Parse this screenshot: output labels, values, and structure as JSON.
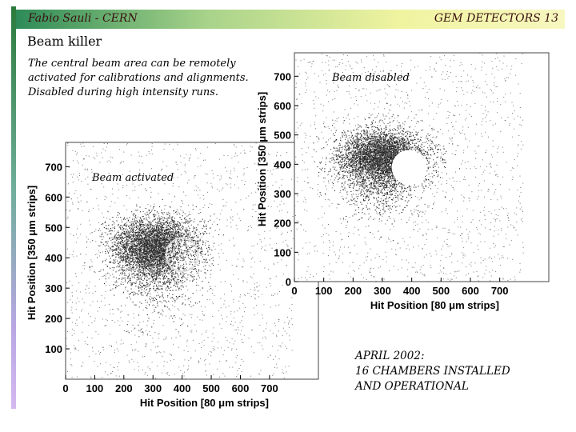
{
  "header": {
    "author": "Fabio Sauli - CERN",
    "slide_label": "GEM DETECTORS 13"
  },
  "slide": {
    "title": "Beam killer",
    "description_lines": [
      "The central beam area can be remotely",
      "activated for calibrations and alignments.",
      "Disabled during high intensity runs."
    ],
    "note_lines": [
      "APRIL 2002:",
      "16 CHAMBERS INSTALLED",
      "AND OPERATIONAL"
    ]
  },
  "chart_data": [
    {
      "type": "scatter",
      "annotation": "Beam activated",
      "xlabel": "Hit Position [80 μm strips]",
      "ylabel": "Hit Position [350 μm strips]",
      "xlim": [
        0,
        780
      ],
      "ylim": [
        0,
        780
      ],
      "xticks": [
        0,
        100,
        200,
        300,
        400,
        500,
        600,
        700
      ],
      "yticks": [
        100,
        200,
        300,
        400,
        500,
        600,
        700
      ],
      "cluster": {
        "x_range": [
          210,
          470
        ],
        "y_range": [
          340,
          510
        ],
        "center": [
          300,
          440
        ]
      },
      "hole": {
        "center": [
          400,
          410
        ],
        "radius": 55,
        "state": "active"
      }
    },
    {
      "type": "scatter",
      "annotation": "Beam disabled",
      "xlabel": "Hit Position [80 μm strips]",
      "ylabel": "Hit Position [350 μm strips]",
      "xlim": [
        0,
        780
      ],
      "ylim": [
        0,
        780
      ],
      "xticks": [
        0,
        100,
        200,
        300,
        400,
        500,
        600,
        700
      ],
      "yticks": [
        0,
        100,
        200,
        300,
        400,
        500,
        600,
        700
      ],
      "cluster": {
        "x_range": [
          190,
          450
        ],
        "y_range": [
          350,
          510
        ],
        "center": [
          290,
          430
        ]
      },
      "hole": {
        "center": [
          390,
          390
        ],
        "radius": 58,
        "state": "disabled"
      }
    }
  ]
}
